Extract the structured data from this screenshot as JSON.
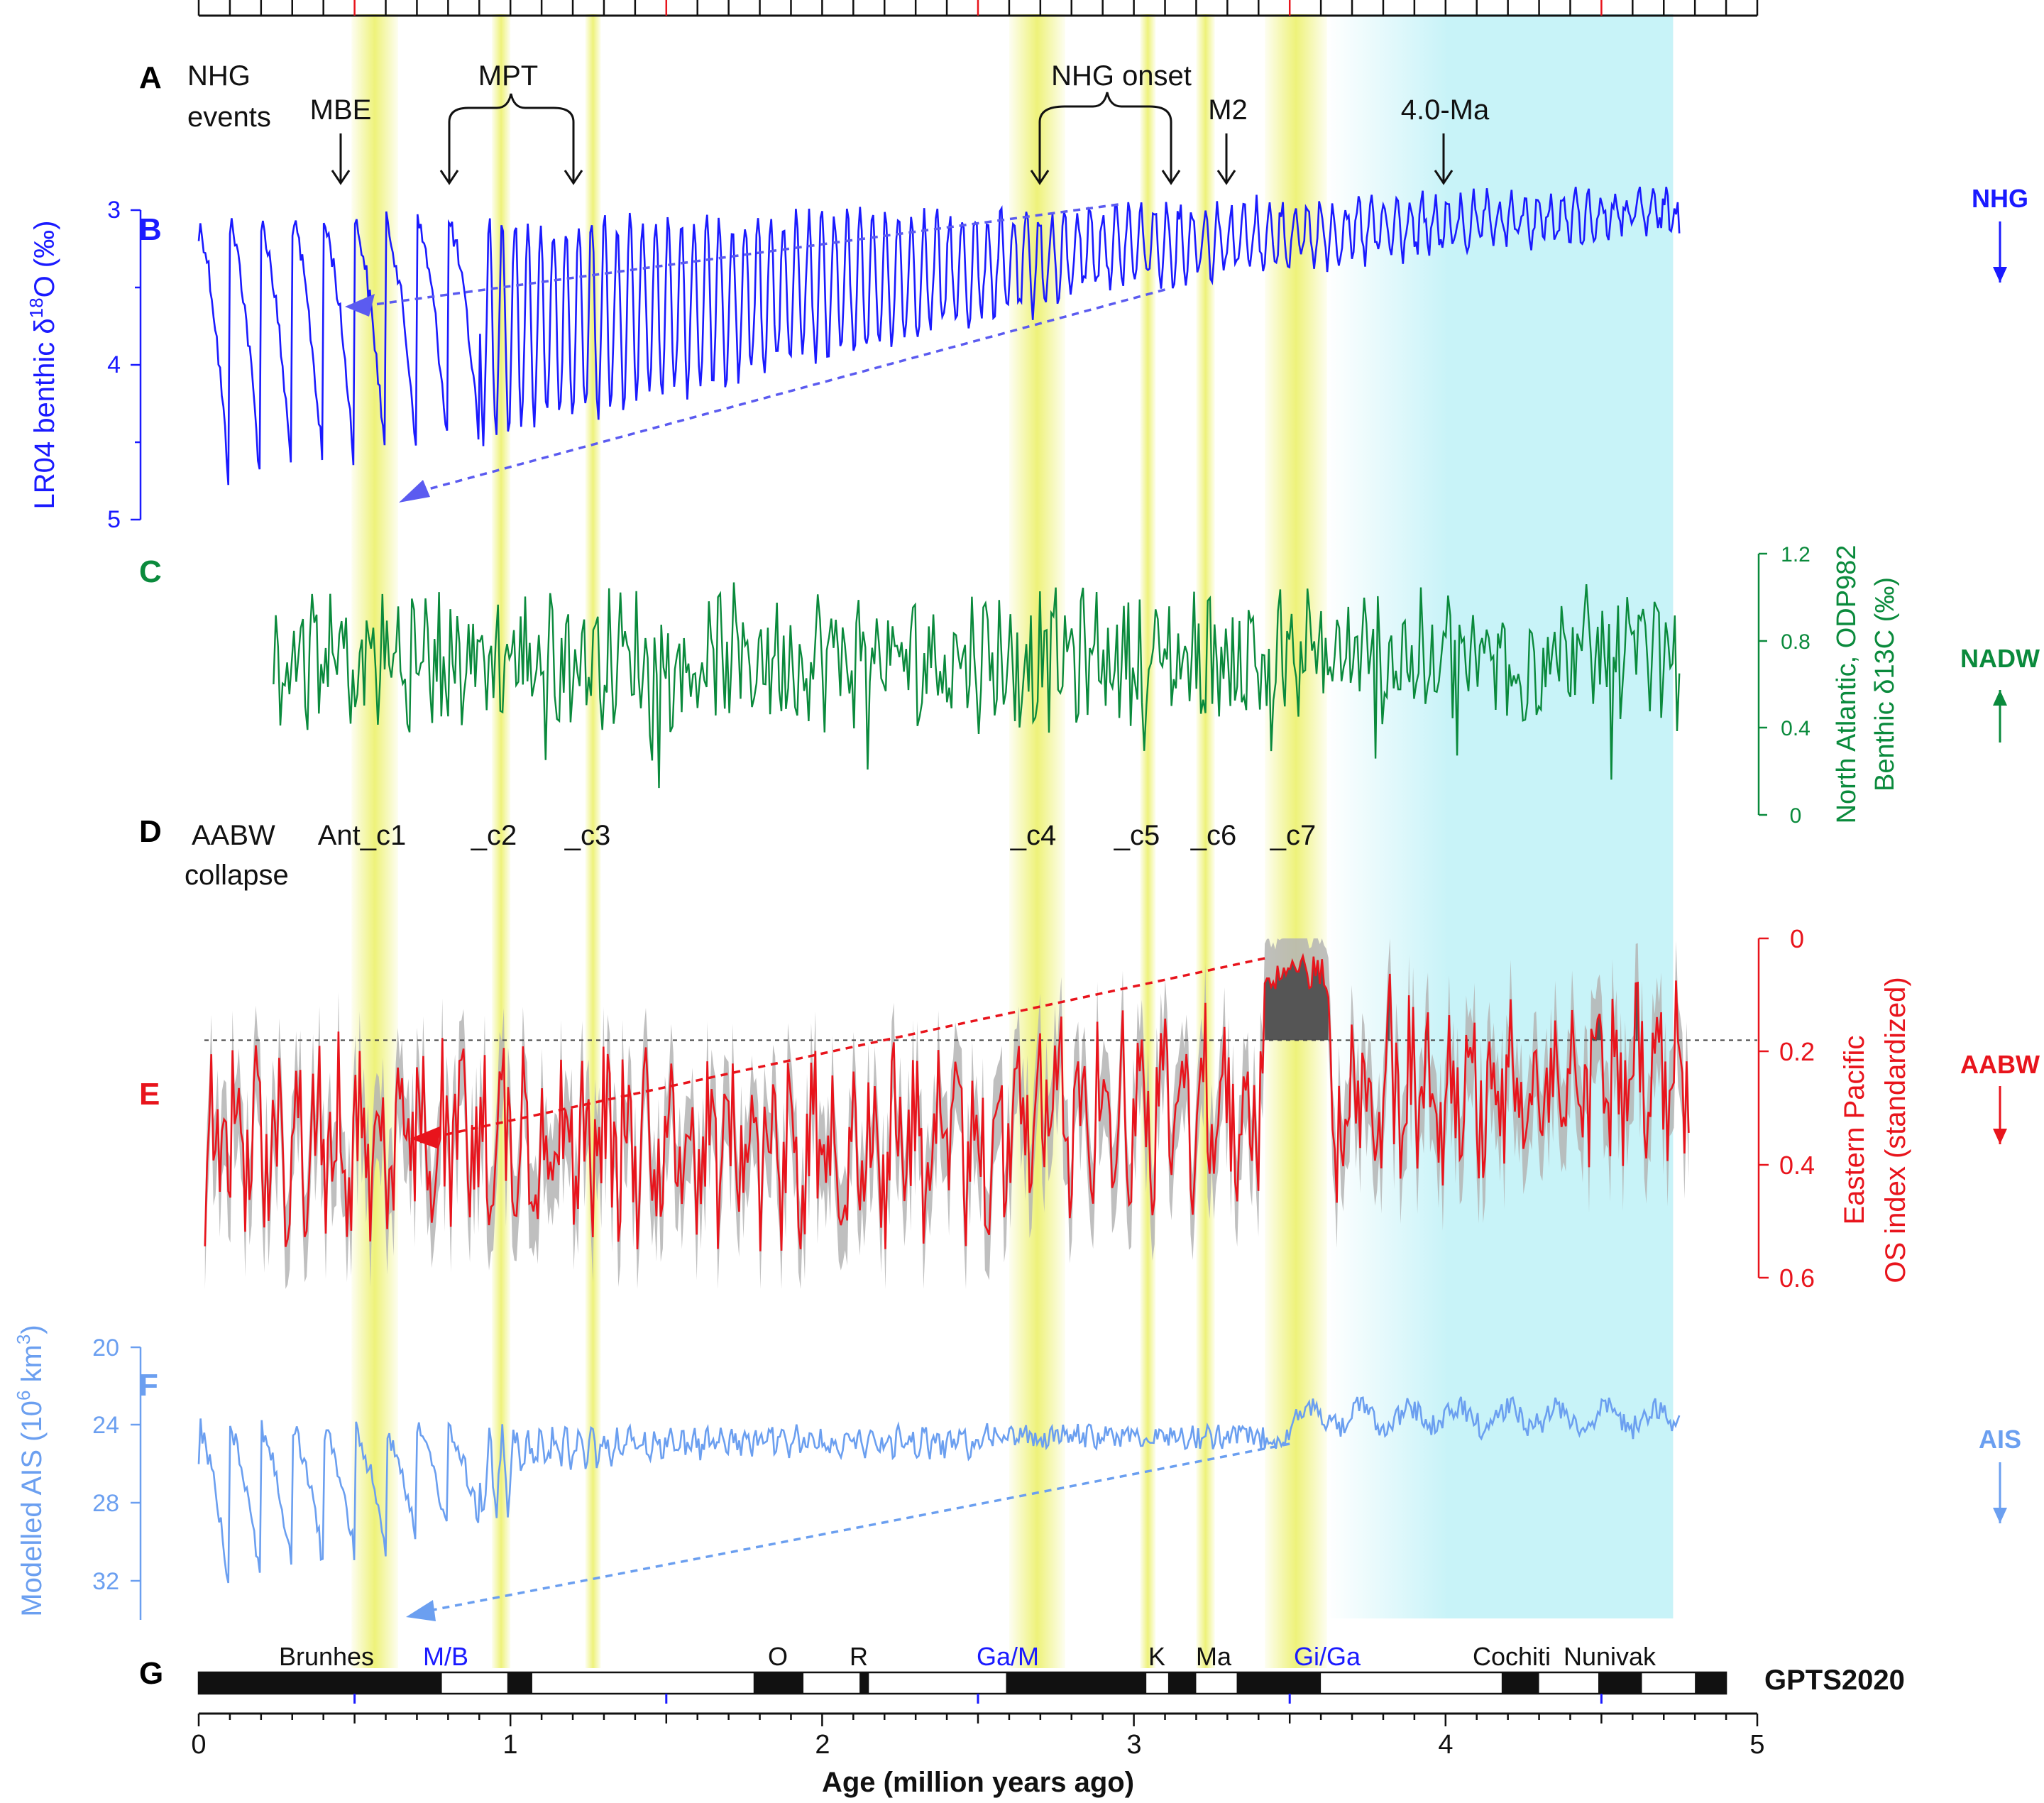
{
  "colors": {
    "blue": "#1a1aff",
    "green": "#0a8a3c",
    "red": "#e8141c",
    "lightblue": "#6b9ff0",
    "cyan_band": "#c8f3f8",
    "yellow_band": "#eef27a",
    "gray_band": "#b4b4b4",
    "dark_fill": "#555555",
    "black": "#111111"
  },
  "panel_letters": {
    "A": "A",
    "B": "B",
    "C": "C",
    "D": "D",
    "E": "E",
    "F": "F",
    "G": "G"
  },
  "events": {
    "header": [
      "NHG",
      "events"
    ],
    "items": [
      {
        "label": "MBE"
      },
      {
        "label": "MPT"
      },
      {
        "label": "NHG onset"
      },
      {
        "label": "M2"
      },
      {
        "label": "4.0-Ma"
      }
    ]
  },
  "aabw": {
    "header": [
      "AABW",
      "collapse"
    ],
    "labels": [
      "Ant_c1",
      "_c2",
      "_c3",
      "_c4",
      "_c5",
      "_c6",
      "_c7"
    ]
  },
  "right_labels": {
    "nhg": "NHG",
    "nadw": "NADW",
    "aabw": "AABW",
    "ais": "AIS"
  },
  "gpts": {
    "label": "GPTS2020",
    "names": [
      "Brunhes",
      "M/B",
      "O",
      "R",
      "Ga/M",
      "K",
      "Ma",
      "Gi/Ga",
      "Cochiti",
      "Nunivak"
    ],
    "normal_intervals": [
      [
        0.0,
        0.78
      ],
      [
        0.99,
        1.07
      ],
      [
        1.78,
        1.94
      ],
      [
        2.12,
        2.15
      ],
      [
        2.59,
        3.04
      ],
      [
        3.11,
        3.2
      ],
      [
        3.33,
        3.6
      ],
      [
        4.18,
        4.3
      ],
      [
        4.49,
        4.63
      ],
      [
        4.8,
        4.9
      ]
    ]
  },
  "chart_data": [
    {
      "id": "B",
      "type": "line",
      "title": "",
      "ylabel": "LR04 benthic δ18O (‰)",
      "ylabel_parts": [
        "LR04 benthic δ",
        "18",
        "O (‰)"
      ],
      "ylim": [
        3,
        5
      ],
      "inverted": true,
      "yticks": [
        "3",
        "4",
        "5"
      ],
      "approx_series": {
        "x_range": [
          0,
          4.75
        ],
        "start": 3.2,
        "end": 3.15,
        "glacial_trend": [
          4.9,
          3.6
        ],
        "interglacial_trend": [
          3.1,
          3.0
        ]
      },
      "trend_lines": [
        {
          "from_x": 2.95,
          "to_x": 0.47
        },
        {
          "from_x": 3.1,
          "to_x": 0.64
        }
      ]
    },
    {
      "id": "C",
      "type": "line",
      "title": "",
      "ylabel_lines": [
        "North Atlantic, ODP982",
        "Benthic δ13C (‰)"
      ],
      "ylim": [
        0,
        1.2
      ],
      "yticks": [
        "0",
        "0.4",
        "0.8",
        "1.2"
      ],
      "approx_series": {
        "x_range": [
          0.24,
          4.75
        ],
        "mean": 0.72,
        "spread": 0.25,
        "start": 0.6,
        "end": 0.65
      }
    },
    {
      "id": "E",
      "type": "line",
      "title": "",
      "ylabel_lines": [
        "Eastern Pacific",
        "OS index (standardized)"
      ],
      "ylim": [
        0,
        0.6
      ],
      "inverted": true,
      "yticks": [
        "0",
        "0.2",
        "0.4",
        "0.6"
      ],
      "threshold": 0.18,
      "approx_series": {
        "x_range": [
          0.02,
          4.78
        ],
        "mean": 0.36,
        "spread": 0.12,
        "low_period": [
          3.42,
          3.62
        ],
        "low_value": 0.03
      },
      "trend_lines": [
        {
          "from_x": 3.42,
          "to_x": 0.68
        }
      ]
    },
    {
      "id": "F",
      "type": "line",
      "title": "",
      "ylabel": "Modelled AIS (106 km3)",
      "ylabel_parts": [
        "Modelled AIS (10",
        "6",
        " km",
        "3",
        ")"
      ],
      "ylim": [
        20,
        34
      ],
      "inverted": true,
      "yticks": [
        "20",
        "24",
        "28",
        "32"
      ],
      "approx_series": {
        "x_range": [
          0,
          4.75
        ],
        "start": 26,
        "end": 23.5
      },
      "trend_lines": [
        {
          "from_x": 3.5,
          "to_x": 0.66
        }
      ]
    },
    {
      "id": "G",
      "type": "bar",
      "title": "",
      "xlabel": "Age (million years ago)",
      "xlim": [
        0,
        5
      ],
      "xticks": [
        "0",
        "1",
        "2",
        "3",
        "4",
        "5"
      ],
      "highlight_bands_ma": [
        [
          0.49,
          0.64
        ],
        [
          0.94,
          1.0
        ],
        [
          1.24,
          1.29
        ],
        [
          2.6,
          2.78
        ],
        [
          3.02,
          3.07
        ],
        [
          3.2,
          3.26
        ],
        [
          3.42,
          3.62
        ]
      ],
      "cyan_region_ma": [
        3.62,
        4.73
      ]
    }
  ]
}
